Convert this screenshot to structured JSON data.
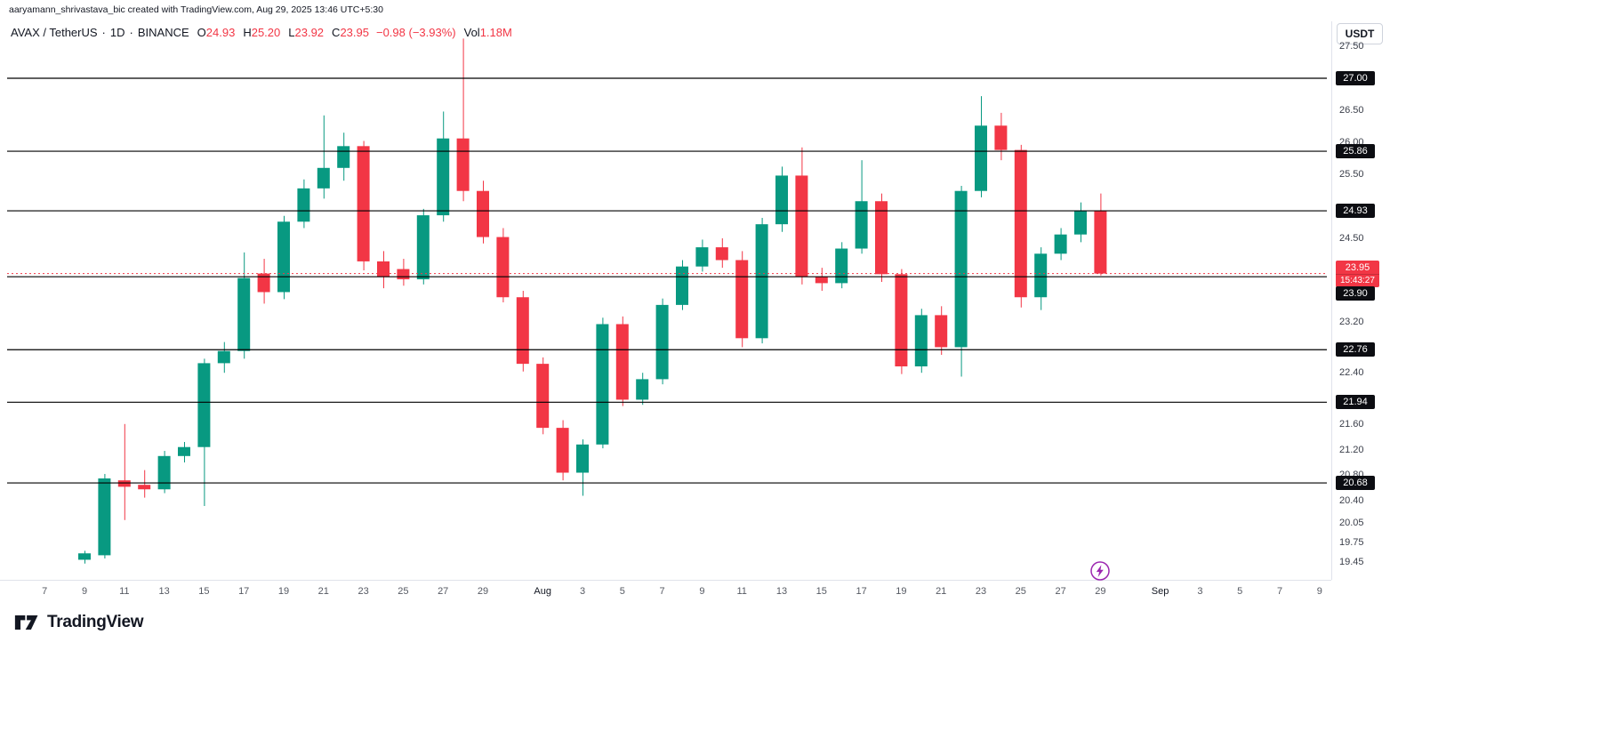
{
  "attribution": "aaryamann_shrivastava_bic created with TradingView.com, Aug 29, 2025 13:46 UTC+5:30",
  "header": {
    "symbol": "AVAX / TetherUS",
    "sep": "·",
    "interval": "1D",
    "exchange": "BINANCE",
    "ohlc": {
      "o_label": "O",
      "o": "24.93",
      "h_label": "H",
      "h": "25.20",
      "l_label": "L",
      "l": "23.92",
      "c_label": "C",
      "c": "23.95",
      "change": "−0.98 (−3.93%)",
      "vol_label": "Vol",
      "vol": "1.18M"
    }
  },
  "top_right": {
    "currency_button": "USDT"
  },
  "footer": {
    "logo_text": "TradingView"
  },
  "marker": {
    "icon": "lightning-icon",
    "color": "#9c27b0"
  },
  "colors": {
    "up": "#089981",
    "down": "#f23645",
    "level_line": "#000000",
    "badge_bg": "#0c0d12",
    "badge_text": "#ffffff",
    "current_badge_bg": "#f23645"
  },
  "chart_data": {
    "type": "candlestick",
    "title": "AVAX / TetherUS · 1D · BINANCE",
    "symbol": "AVAX/USDT",
    "interval": "1D",
    "grid": false,
    "y_range": [
      19.42,
      27.7
    ],
    "y_ticks": [
      {
        "value": 27.5,
        "text": "27.50"
      },
      {
        "value": 26.5,
        "text": "26.50"
      },
      {
        "value": 26.0,
        "text": "26.00"
      },
      {
        "value": 25.5,
        "text": "25.50"
      },
      {
        "value": 24.5,
        "text": "24.50"
      },
      {
        "value": 23.2,
        "text": "23.20"
      },
      {
        "value": 22.4,
        "text": "22.40"
      },
      {
        "value": 21.6,
        "text": "21.60"
      },
      {
        "value": 21.2,
        "text": "21.20"
      },
      {
        "value": 20.8,
        "text": "20.80"
      },
      {
        "value": 20.4,
        "text": "20.40"
      },
      {
        "value": 20.05,
        "text": "20.05"
      },
      {
        "value": 19.75,
        "text": "19.75"
      },
      {
        "value": 19.45,
        "text": "19.45"
      }
    ],
    "levels": [
      {
        "value": 27.0,
        "text": "27.00"
      },
      {
        "value": 25.86,
        "text": "25.86"
      },
      {
        "value": 24.93,
        "text": "24.93"
      },
      {
        "value": 23.9,
        "text": "23.90"
      },
      {
        "value": 22.76,
        "text": "22.76"
      },
      {
        "value": 21.94,
        "text": "21.94"
      },
      {
        "value": 20.68,
        "text": "20.68"
      }
    ],
    "current_price": {
      "value": 23.95,
      "text": "23.95",
      "countdown": "15:43:27"
    },
    "x_ticks": [
      {
        "label": "7",
        "offset": -2
      },
      {
        "label": "9",
        "offset": 0
      },
      {
        "label": "11",
        "offset": 2
      },
      {
        "label": "13",
        "offset": 4
      },
      {
        "label": "15",
        "offset": 6
      },
      {
        "label": "17",
        "offset": 8
      },
      {
        "label": "19",
        "offset": 10
      },
      {
        "label": "21",
        "offset": 12
      },
      {
        "label": "23",
        "offset": 14
      },
      {
        "label": "25",
        "offset": 16
      },
      {
        "label": "27",
        "offset": 18
      },
      {
        "label": "29",
        "offset": 20
      },
      {
        "label": "Aug",
        "offset": 23,
        "month": true
      },
      {
        "label": "3",
        "offset": 25
      },
      {
        "label": "5",
        "offset": 27
      },
      {
        "label": "7",
        "offset": 29
      },
      {
        "label": "9",
        "offset": 31
      },
      {
        "label": "11",
        "offset": 33
      },
      {
        "label": "13",
        "offset": 35
      },
      {
        "label": "15",
        "offset": 37
      },
      {
        "label": "17",
        "offset": 39
      },
      {
        "label": "19",
        "offset": 41
      },
      {
        "label": "21",
        "offset": 43
      },
      {
        "label": "23",
        "offset": 45
      },
      {
        "label": "25",
        "offset": 47
      },
      {
        "label": "27",
        "offset": 49
      },
      {
        "label": "29",
        "offset": 51
      },
      {
        "label": "Sep",
        "offset": 54,
        "month": true
      },
      {
        "label": "3",
        "offset": 56
      },
      {
        "label": "5",
        "offset": 58
      },
      {
        "label": "7",
        "offset": 60
      },
      {
        "label": "9",
        "offset": 62
      }
    ],
    "candles": [
      {
        "d": "Jul 9",
        "o": 19.48,
        "h": 19.62,
        "l": 19.42,
        "c": 19.58
      },
      {
        "d": "Jul 10",
        "o": 19.55,
        "h": 20.82,
        "l": 19.5,
        "c": 20.75
      },
      {
        "d": "Jul 11",
        "o": 20.72,
        "h": 21.6,
        "l": 20.1,
        "c": 20.62
      },
      {
        "d": "Jul 12",
        "o": 20.65,
        "h": 20.88,
        "l": 20.45,
        "c": 20.58
      },
      {
        "d": "Jul 13",
        "o": 20.58,
        "h": 21.18,
        "l": 20.52,
        "c": 21.1
      },
      {
        "d": "Jul 14",
        "o": 21.1,
        "h": 21.32,
        "l": 21.0,
        "c": 21.24
      },
      {
        "d": "Jul 15",
        "o": 21.24,
        "h": 22.62,
        "l": 20.32,
        "c": 22.55
      },
      {
        "d": "Jul 16",
        "o": 22.55,
        "h": 22.88,
        "l": 22.4,
        "c": 22.74
      },
      {
        "d": "Jul 17",
        "o": 22.74,
        "h": 24.28,
        "l": 22.62,
        "c": 23.88
      },
      {
        "d": "Jul 18",
        "o": 23.95,
        "h": 24.18,
        "l": 23.48,
        "c": 23.66
      },
      {
        "d": "Jul 19",
        "o": 23.66,
        "h": 24.85,
        "l": 23.55,
        "c": 24.76
      },
      {
        "d": "Jul 20",
        "o": 24.76,
        "h": 25.42,
        "l": 24.66,
        "c": 25.28
      },
      {
        "d": "Jul 21",
        "o": 25.28,
        "h": 26.42,
        "l": 25.12,
        "c": 25.6
      },
      {
        "d": "Jul 22",
        "o": 25.6,
        "h": 26.15,
        "l": 25.4,
        "c": 25.94
      },
      {
        "d": "Jul 23",
        "o": 25.94,
        "h": 26.02,
        "l": 24.0,
        "c": 24.14
      },
      {
        "d": "Jul 24",
        "o": 24.14,
        "h": 24.3,
        "l": 23.72,
        "c": 23.9
      },
      {
        "d": "Jul 25",
        "o": 24.02,
        "h": 24.18,
        "l": 23.76,
        "c": 23.86
      },
      {
        "d": "Jul 26",
        "o": 23.86,
        "h": 24.96,
        "l": 23.78,
        "c": 24.86
      },
      {
        "d": "Jul 27",
        "o": 24.86,
        "h": 26.48,
        "l": 24.76,
        "c": 26.06
      },
      {
        "d": "Jul 28",
        "o": 26.06,
        "h": 27.62,
        "l": 25.08,
        "c": 25.24
      },
      {
        "d": "Jul 29",
        "o": 25.24,
        "h": 25.4,
        "l": 24.42,
        "c": 24.52
      },
      {
        "d": "Jul 30",
        "o": 24.52,
        "h": 24.66,
        "l": 23.5,
        "c": 23.58
      },
      {
        "d": "Jul 31",
        "o": 23.58,
        "h": 23.68,
        "l": 22.42,
        "c": 22.54
      },
      {
        "d": "Aug 1",
        "o": 22.54,
        "h": 22.64,
        "l": 21.44,
        "c": 21.54
      },
      {
        "d": "Aug 2",
        "o": 21.54,
        "h": 21.66,
        "l": 20.72,
        "c": 20.84
      },
      {
        "d": "Aug 3",
        "o": 20.84,
        "h": 21.36,
        "l": 20.48,
        "c": 21.28
      },
      {
        "d": "Aug 4",
        "o": 21.28,
        "h": 23.26,
        "l": 21.22,
        "c": 23.16
      },
      {
        "d": "Aug 5",
        "o": 23.16,
        "h": 23.28,
        "l": 21.88,
        "c": 21.98
      },
      {
        "d": "Aug 6",
        "o": 21.98,
        "h": 22.4,
        "l": 21.9,
        "c": 22.3
      },
      {
        "d": "Aug 7",
        "o": 22.3,
        "h": 23.56,
        "l": 22.22,
        "c": 23.46
      },
      {
        "d": "Aug 8",
        "o": 23.46,
        "h": 24.16,
        "l": 23.38,
        "c": 24.06
      },
      {
        "d": "Aug 9",
        "o": 24.06,
        "h": 24.48,
        "l": 23.98,
        "c": 24.36
      },
      {
        "d": "Aug 10",
        "o": 24.36,
        "h": 24.5,
        "l": 24.04,
        "c": 24.16
      },
      {
        "d": "Aug 11",
        "o": 24.16,
        "h": 24.3,
        "l": 22.8,
        "c": 22.94
      },
      {
        "d": "Aug 12",
        "o": 22.94,
        "h": 24.82,
        "l": 22.86,
        "c": 24.72
      },
      {
        "d": "Aug 13",
        "o": 24.72,
        "h": 25.62,
        "l": 24.6,
        "c": 25.48
      },
      {
        "d": "Aug 14",
        "o": 25.48,
        "h": 25.92,
        "l": 23.78,
        "c": 23.9
      },
      {
        "d": "Aug 15",
        "o": 23.9,
        "h": 24.04,
        "l": 23.68,
        "c": 23.8
      },
      {
        "d": "Aug 16",
        "o": 23.8,
        "h": 24.44,
        "l": 23.72,
        "c": 24.34
      },
      {
        "d": "Aug 17",
        "o": 24.34,
        "h": 25.72,
        "l": 24.26,
        "c": 25.08
      },
      {
        "d": "Aug 18",
        "o": 25.08,
        "h": 25.2,
        "l": 23.82,
        "c": 23.94
      },
      {
        "d": "Aug 19",
        "o": 23.94,
        "h": 24.02,
        "l": 22.38,
        "c": 22.5
      },
      {
        "d": "Aug 20",
        "o": 22.5,
        "h": 23.4,
        "l": 22.4,
        "c": 23.3
      },
      {
        "d": "Aug 21",
        "o": 23.3,
        "h": 23.44,
        "l": 22.68,
        "c": 22.8
      },
      {
        "d": "Aug 22",
        "o": 22.8,
        "h": 25.32,
        "l": 22.34,
        "c": 25.24
      },
      {
        "d": "Aug 23",
        "o": 25.24,
        "h": 26.72,
        "l": 25.14,
        "c": 26.26
      },
      {
        "d": "Aug 24",
        "o": 26.26,
        "h": 26.46,
        "l": 25.72,
        "c": 25.88
      },
      {
        "d": "Aug 25",
        "o": 25.88,
        "h": 25.96,
        "l": 23.42,
        "c": 23.58
      },
      {
        "d": "Aug 26",
        "o": 23.58,
        "h": 24.36,
        "l": 23.38,
        "c": 24.26
      },
      {
        "d": "Aug 27",
        "o": 24.26,
        "h": 24.66,
        "l": 24.16,
        "c": 24.56
      },
      {
        "d": "Aug 28",
        "o": 24.56,
        "h": 25.06,
        "l": 24.44,
        "c": 24.93
      },
      {
        "d": "Aug 29",
        "o": 24.93,
        "h": 25.2,
        "l": 23.92,
        "c": 23.95
      }
    ]
  }
}
